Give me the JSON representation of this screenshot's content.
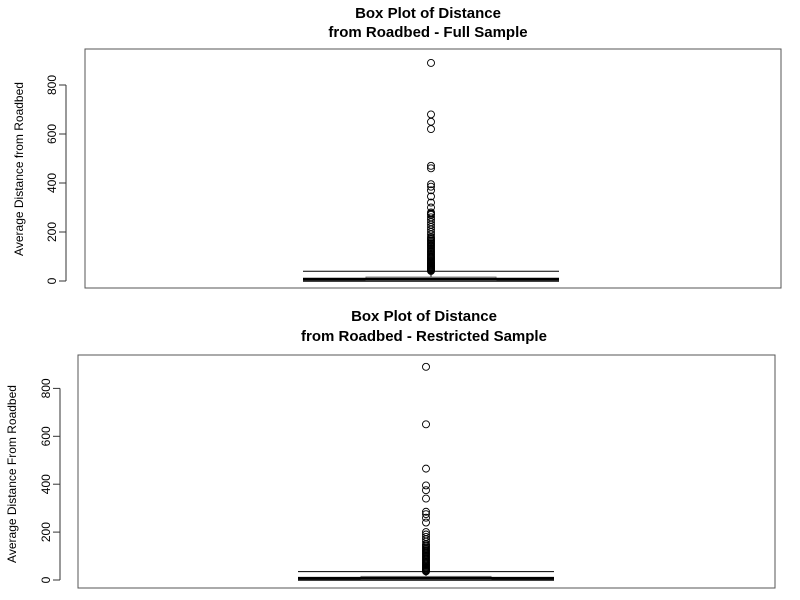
{
  "chart_data": [
    {
      "type": "boxplot",
      "title": [
        "Box Plot of Distance",
        "from Roadbed - Full Sample"
      ],
      "xlabel": "",
      "ylabel": "Average Distance from Roadbed",
      "ylim": [
        0,
        900
      ],
      "yticks": [
        0,
        200,
        400,
        600,
        800
      ],
      "grid": false,
      "box": {
        "min": 0,
        "q1": 3,
        "median": 8,
        "q3": 16,
        "max": 40
      },
      "outliers": [
        41,
        43,
        45,
        48,
        50,
        53,
        55,
        58,
        60,
        63,
        66,
        70,
        73,
        76,
        80,
        84,
        88,
        92,
        96,
        100,
        105,
        110,
        115,
        120,
        125,
        130,
        135,
        140,
        145,
        150,
        155,
        160,
        165,
        170,
        175,
        180,
        190,
        200,
        210,
        220,
        230,
        240,
        250,
        260,
        270,
        275,
        280,
        300,
        320,
        345,
        370,
        385,
        395,
        460,
        470,
        620,
        650,
        680,
        890
      ]
    },
    {
      "type": "boxplot",
      "title": [
        "Box Plot of Distance",
        "from Roadbed - Restricted Sample"
      ],
      "xlabel": "",
      "ylabel": "Average Distance From Roadbed",
      "ylim": [
        0,
        900
      ],
      "yticks": [
        0,
        200,
        400,
        600,
        800
      ],
      "grid": false,
      "box": {
        "min": 0,
        "q1": 3,
        "median": 8,
        "q3": 15,
        "max": 35
      },
      "outliers": [
        36,
        38,
        40,
        43,
        46,
        50,
        54,
        58,
        62,
        66,
        70,
        75,
        80,
        85,
        90,
        95,
        100,
        105,
        110,
        115,
        120,
        125,
        130,
        135,
        140,
        145,
        150,
        160,
        170,
        180,
        190,
        200,
        240,
        260,
        275,
        285,
        340,
        375,
        395,
        465,
        650,
        890
      ]
    }
  ]
}
